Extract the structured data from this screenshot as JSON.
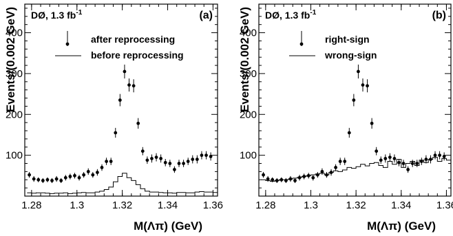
{
  "chart_data": [
    {
      "type": "scatter",
      "panel_label": "(a)",
      "experiment": "DØ, 1.3 fb",
      "experiment_sup": "-1",
      "xlabel": "M(Λπ) (GeV)",
      "ylabel": "Events/(0.002 GeV)",
      "xlim": [
        1.277,
        1.362
      ],
      "ylim": [
        0,
        470
      ],
      "xticks": [
        "1.28",
        "1.3",
        "1.32",
        "1.34",
        "1.36"
      ],
      "xtick_values": [
        1.28,
        1.3,
        1.32,
        1.34,
        1.36
      ],
      "yticks": [
        "100",
        "200",
        "300",
        "400"
      ],
      "ytick_values": [
        100,
        200,
        300,
        400
      ],
      "legend": {
        "placement": "top-right",
        "points_label": "after reprocessing",
        "line_label": "before reprocessing"
      },
      "series": [
        {
          "name": "after reprocessing",
          "style": "points",
          "x": [
            1.279,
            1.281,
            1.283,
            1.285,
            1.287,
            1.289,
            1.291,
            1.293,
            1.295,
            1.297,
            1.299,
            1.301,
            1.303,
            1.305,
            1.307,
            1.309,
            1.311,
            1.313,
            1.315,
            1.317,
            1.319,
            1.321,
            1.323,
            1.325,
            1.327,
            1.329,
            1.331,
            1.333,
            1.335,
            1.337,
            1.339,
            1.341,
            1.343,
            1.345,
            1.347,
            1.349,
            1.351,
            1.353,
            1.355,
            1.357,
            1.359
          ],
          "y": [
            52,
            42,
            40,
            38,
            40,
            38,
            42,
            38,
            45,
            48,
            50,
            45,
            52,
            60,
            52,
            58,
            70,
            85,
            85,
            155,
            235,
            305,
            272,
            270,
            178,
            110,
            88,
            92,
            95,
            92,
            82,
            80,
            65,
            80,
            80,
            85,
            90,
            90,
            100,
            100,
            97
          ],
          "err": [
            7,
            7,
            6,
            6,
            6,
            6,
            7,
            6,
            7,
            7,
            7,
            7,
            7,
            8,
            7,
            8,
            8,
            9,
            9,
            12,
            15,
            17,
            16,
            16,
            13,
            10,
            9,
            10,
            10,
            10,
            9,
            9,
            8,
            9,
            9,
            9,
            10,
            10,
            10,
            10,
            10
          ]
        },
        {
          "name": "before reprocessing",
          "style": "histogram",
          "bin_start": 1.278,
          "bin_width": 0.002,
          "values": [
            8,
            7,
            8,
            8,
            7,
            6,
            7,
            7,
            8,
            6,
            7,
            8,
            9,
            8,
            8,
            10,
            12,
            16,
            22,
            35,
            48,
            56,
            45,
            38,
            28,
            18,
            12,
            10,
            10,
            9,
            8,
            8,
            7,
            9,
            9,
            8,
            8,
            10,
            11,
            10,
            10,
            9
          ]
        }
      ]
    },
    {
      "type": "scatter",
      "panel_label": "(b)",
      "experiment": "DØ, 1.3 fb",
      "experiment_sup": "-1",
      "xlabel": "M(Λπ) (GeV)",
      "ylabel": "Events/(0.002 GeV)",
      "xlim": [
        1.277,
        1.362
      ],
      "ylim": [
        0,
        470
      ],
      "xticks": [
        "1.28",
        "1.3",
        "1.32",
        "1.34",
        "1.36"
      ],
      "xtick_values": [
        1.28,
        1.3,
        1.32,
        1.34,
        1.36
      ],
      "yticks": [
        "100",
        "200",
        "300",
        "400"
      ],
      "ytick_values": [
        100,
        200,
        300,
        400
      ],
      "legend": {
        "placement": "top-right",
        "points_label": "right-sign",
        "line_label": "wrong-sign"
      },
      "series": [
        {
          "name": "right-sign",
          "style": "points",
          "x": [
            1.279,
            1.281,
            1.283,
            1.285,
            1.287,
            1.289,
            1.291,
            1.293,
            1.295,
            1.297,
            1.299,
            1.301,
            1.303,
            1.305,
            1.307,
            1.309,
            1.311,
            1.313,
            1.315,
            1.317,
            1.319,
            1.321,
            1.323,
            1.325,
            1.327,
            1.329,
            1.331,
            1.333,
            1.335,
            1.337,
            1.339,
            1.341,
            1.343,
            1.345,
            1.347,
            1.349,
            1.351,
            1.353,
            1.355,
            1.357,
            1.359
          ],
          "y": [
            52,
            42,
            40,
            38,
            40,
            38,
            42,
            38,
            45,
            48,
            50,
            45,
            52,
            60,
            52,
            58,
            70,
            85,
            85,
            155,
            235,
            305,
            272,
            270,
            178,
            110,
            88,
            92,
            95,
            92,
            82,
            80,
            65,
            80,
            80,
            85,
            90,
            90,
            100,
            100,
            97
          ],
          "err": [
            7,
            7,
            6,
            6,
            6,
            6,
            7,
            6,
            7,
            7,
            7,
            7,
            7,
            8,
            7,
            8,
            8,
            9,
            9,
            12,
            15,
            17,
            16,
            16,
            13,
            10,
            9,
            10,
            10,
            10,
            9,
            9,
            8,
            9,
            9,
            9,
            10,
            10,
            10,
            10,
            10
          ]
        },
        {
          "name": "wrong-sign",
          "style": "histogram",
          "bin_start": 1.278,
          "bin_width": 0.002,
          "values": [
            40,
            38,
            36,
            38,
            40,
            40,
            42,
            44,
            46,
            48,
            50,
            52,
            54,
            56,
            52,
            58,
            62,
            60,
            64,
            70,
            68,
            72,
            78,
            74,
            80,
            82,
            75,
            70,
            85,
            78,
            90,
            70,
            80,
            85,
            75,
            88,
            82,
            90,
            95,
            85,
            92,
            88
          ]
        }
      ]
    }
  ]
}
